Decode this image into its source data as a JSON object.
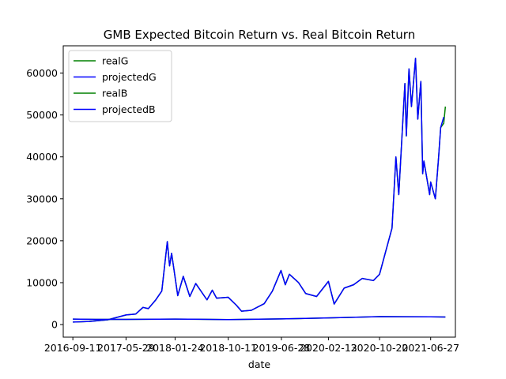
{
  "chart_data": {
    "type": "line",
    "title": "GMB Expected Bitcoin Return vs. Real Bitcoin Return",
    "xlabel": "date",
    "ylabel": "",
    "xlim": [
      "2016-07-26",
      "2021-10-26"
    ],
    "ylim": [
      -3000,
      66500
    ],
    "grid": false,
    "legend_position": "top-left",
    "x_ticks": [
      "2016-09-11",
      "2017-05-29",
      "2018-01-24",
      "2018-10-11",
      "2019-06-28",
      "2020-02-13",
      "2020-10-20",
      "2021-06-27"
    ],
    "y_ticks": [
      0,
      10000,
      20000,
      30000,
      40000,
      50000,
      60000
    ],
    "y_tick_labels": [
      "0",
      "10000",
      "20000",
      "30000",
      "40000",
      "50000",
      "60000"
    ],
    "series": [
      {
        "name": "realG",
        "color": "#008000",
        "points": [
          [
            "2016-09-11",
            600
          ],
          [
            "2016-12-01",
            750
          ],
          [
            "2017-03-01",
            1150
          ],
          [
            "2017-05-29",
            2300
          ],
          [
            "2017-07-15",
            2500
          ],
          [
            "2017-08-20",
            4100
          ],
          [
            "2017-09-15",
            3800
          ],
          [
            "2017-10-20",
            5800
          ],
          [
            "2017-11-20",
            8000
          ],
          [
            "2017-12-17",
            19800
          ],
          [
            "2017-12-28",
            14000
          ],
          [
            "2018-01-07",
            17000
          ],
          [
            "2018-02-06",
            6900
          ],
          [
            "2018-03-05",
            11500
          ],
          [
            "2018-04-06",
            6700
          ],
          [
            "2018-05-05",
            9800
          ],
          [
            "2018-06-29",
            5900
          ],
          [
            "2018-07-25",
            8200
          ],
          [
            "2018-08-15",
            6300
          ],
          [
            "2018-10-11",
            6500
          ],
          [
            "2018-11-20",
            4600
          ],
          [
            "2018-12-15",
            3200
          ],
          [
            "2019-02-01",
            3400
          ],
          [
            "2019-04-05",
            5000
          ],
          [
            "2019-05-15",
            8000
          ],
          [
            "2019-06-26",
            12900
          ],
          [
            "2019-07-17",
            9500
          ],
          [
            "2019-08-06",
            12000
          ],
          [
            "2019-09-20",
            10000
          ],
          [
            "2019-10-25",
            7400
          ],
          [
            "2019-12-17",
            6700
          ],
          [
            "2020-02-13",
            10300
          ],
          [
            "2020-03-12",
            4900
          ],
          [
            "2020-04-30",
            8700
          ],
          [
            "2020-06-15",
            9500
          ],
          [
            "2020-07-27",
            11000
          ],
          [
            "2020-09-20",
            10500
          ],
          [
            "2020-10-20",
            12000
          ],
          [
            "2020-11-25",
            18500
          ],
          [
            "2020-12-20",
            23000
          ],
          [
            "2021-01-08",
            40000
          ],
          [
            "2021-01-22",
            31000
          ],
          [
            "2021-02-21",
            57500
          ],
          [
            "2021-02-28",
            45000
          ],
          [
            "2021-03-13",
            61000
          ],
          [
            "2021-03-25",
            52000
          ],
          [
            "2021-04-14",
            63500
          ],
          [
            "2021-04-25",
            49000
          ],
          [
            "2021-05-10",
            58000
          ],
          [
            "2021-05-19",
            36000
          ],
          [
            "2021-05-25",
            39000
          ],
          [
            "2021-06-22",
            31000
          ],
          [
            "2021-06-27",
            34000
          ],
          [
            "2021-07-20",
            30000
          ],
          [
            "2021-08-05",
            40000
          ],
          [
            "2021-08-15",
            47000
          ],
          [
            "2021-08-30",
            48000
          ],
          [
            "2021-09-07",
            52000
          ]
        ]
      },
      {
        "name": "projectedG",
        "color": "#0000ff",
        "points": [
          [
            "2016-09-11",
            600
          ],
          [
            "2016-12-01",
            750
          ],
          [
            "2017-03-01",
            1150
          ],
          [
            "2017-05-29",
            2300
          ],
          [
            "2017-07-15",
            2500
          ],
          [
            "2017-08-20",
            4100
          ],
          [
            "2017-09-15",
            3800
          ],
          [
            "2017-10-20",
            5800
          ],
          [
            "2017-11-20",
            8000
          ],
          [
            "2017-12-17",
            19800
          ],
          [
            "2017-12-28",
            14000
          ],
          [
            "2018-01-07",
            17000
          ],
          [
            "2018-02-06",
            6900
          ],
          [
            "2018-03-05",
            11500
          ],
          [
            "2018-04-06",
            6700
          ],
          [
            "2018-05-05",
            9800
          ],
          [
            "2018-06-29",
            5900
          ],
          [
            "2018-07-25",
            8200
          ],
          [
            "2018-08-15",
            6300
          ],
          [
            "2018-10-11",
            6500
          ],
          [
            "2018-11-20",
            4600
          ],
          [
            "2018-12-15",
            3200
          ],
          [
            "2019-02-01",
            3400
          ],
          [
            "2019-04-05",
            5000
          ],
          [
            "2019-05-15",
            8000
          ],
          [
            "2019-06-26",
            12900
          ],
          [
            "2019-07-17",
            9500
          ],
          [
            "2019-08-06",
            12000
          ],
          [
            "2019-09-20",
            10000
          ],
          [
            "2019-10-25",
            7400
          ],
          [
            "2019-12-17",
            6700
          ],
          [
            "2020-02-13",
            10300
          ],
          [
            "2020-03-12",
            4900
          ],
          [
            "2020-04-30",
            8700
          ],
          [
            "2020-06-15",
            9500
          ],
          [
            "2020-07-27",
            11000
          ],
          [
            "2020-09-20",
            10500
          ],
          [
            "2020-10-20",
            12000
          ],
          [
            "2020-11-25",
            18500
          ],
          [
            "2020-12-20",
            23000
          ],
          [
            "2021-01-08",
            40000
          ],
          [
            "2021-01-22",
            31000
          ],
          [
            "2021-02-21",
            57500
          ],
          [
            "2021-02-28",
            45000
          ],
          [
            "2021-03-13",
            61000
          ],
          [
            "2021-03-25",
            52000
          ],
          [
            "2021-04-14",
            63500
          ],
          [
            "2021-04-25",
            49000
          ],
          [
            "2021-05-10",
            58000
          ],
          [
            "2021-05-19",
            36000
          ],
          [
            "2021-05-25",
            39000
          ],
          [
            "2021-06-22",
            31000
          ],
          [
            "2021-06-27",
            34000
          ],
          [
            "2021-07-20",
            30000
          ],
          [
            "2021-08-05",
            40000
          ],
          [
            "2021-08-15",
            47000
          ],
          [
            "2021-08-30",
            49500
          ]
        ]
      },
      {
        "name": "realB",
        "color": "#008000",
        "points": [
          [
            "2016-09-11",
            1300
          ],
          [
            "2017-01-01",
            1250
          ],
          [
            "2017-05-29",
            1250
          ],
          [
            "2018-01-24",
            1300
          ],
          [
            "2018-10-11",
            1200
          ],
          [
            "2019-06-28",
            1350
          ],
          [
            "2020-02-13",
            1600
          ],
          [
            "2020-10-20",
            1900
          ],
          [
            "2021-06-27",
            1850
          ],
          [
            "2021-09-07",
            1800
          ]
        ]
      },
      {
        "name": "projectedB",
        "color": "#0000ff",
        "points": [
          [
            "2016-09-11",
            1300
          ],
          [
            "2017-01-01",
            1250
          ],
          [
            "2017-05-29",
            1250
          ],
          [
            "2018-01-24",
            1300
          ],
          [
            "2018-10-11",
            1200
          ],
          [
            "2019-06-28",
            1350
          ],
          [
            "2020-02-13",
            1600
          ],
          [
            "2020-10-20",
            1900
          ],
          [
            "2021-06-27",
            1850
          ],
          [
            "2021-09-07",
            1800
          ]
        ]
      }
    ]
  }
}
